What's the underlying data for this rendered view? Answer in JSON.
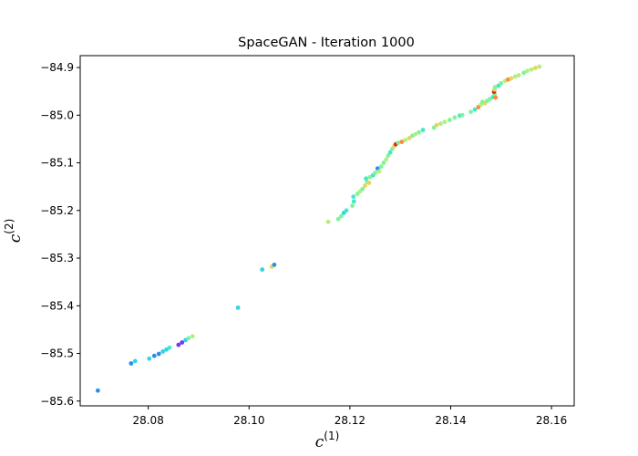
{
  "chart_data": {
    "type": "scatter",
    "title": "SpaceGAN - Iteration 1000",
    "xlabel": {
      "base": "c",
      "sup": "(1)"
    },
    "ylabel": {
      "base": "c",
      "sup": "(2)"
    },
    "xlim": [
      28.0665,
      28.1645
    ],
    "ylim": [
      -85.61,
      -84.875
    ],
    "xticks": [
      28.08,
      28.1,
      28.12,
      28.14,
      28.16
    ],
    "xtick_labels": [
      "28.08",
      "28.10",
      "28.12",
      "28.14",
      "28.16"
    ],
    "yticks": [
      -84.9,
      -85.0,
      -85.1,
      -85.2,
      -85.3,
      -85.4,
      -85.5,
      -85.6
    ],
    "ytick_labels": [
      "−84.9",
      "−85.0",
      "−85.1",
      "−85.2",
      "−85.3",
      "−85.4",
      "−85.5",
      "−85.6"
    ],
    "grid": false,
    "legend": "none",
    "colors": {
      "purple": "#6a3cf5",
      "blue": "#2c8fe6",
      "cyan": "#33d3e8",
      "aqua": "#45e8c5",
      "green": "#7ef59a",
      "lime": "#b3ef7f",
      "yellow": "#e9d45e",
      "orange": "#f78a3e",
      "red": "#e4261b"
    },
    "points": [
      {
        "x": 28.07,
        "y": -85.578,
        "c": "blue"
      },
      {
        "x": 28.0766,
        "y": -85.521,
        "c": "blue"
      },
      {
        "x": 28.0774,
        "y": -85.516,
        "c": "cyan"
      },
      {
        "x": 28.0802,
        "y": -85.511,
        "c": "cyan"
      },
      {
        "x": 28.0812,
        "y": -85.505,
        "c": "blue"
      },
      {
        "x": 28.0821,
        "y": -85.501,
        "c": "blue"
      },
      {
        "x": 28.0829,
        "y": -85.496,
        "c": "cyan"
      },
      {
        "x": 28.0836,
        "y": -85.492,
        "c": "cyan"
      },
      {
        "x": 28.0842,
        "y": -85.488,
        "c": "aqua"
      },
      {
        "x": 28.086,
        "y": -85.482,
        "c": "purple"
      },
      {
        "x": 28.0867,
        "y": -85.477,
        "c": "purple"
      },
      {
        "x": 28.0874,
        "y": -85.472,
        "c": "cyan"
      },
      {
        "x": 28.088,
        "y": -85.468,
        "c": "green"
      },
      {
        "x": 28.0888,
        "y": -85.464,
        "c": "lime"
      },
      {
        "x": 28.0978,
        "y": -85.404,
        "c": "cyan"
      },
      {
        "x": 28.1026,
        "y": -85.324,
        "c": "cyan"
      },
      {
        "x": 28.1045,
        "y": -85.318,
        "c": "yellow"
      },
      {
        "x": 28.105,
        "y": -85.314,
        "c": "blue"
      },
      {
        "x": 28.1157,
        "y": -85.224,
        "c": "lime"
      },
      {
        "x": 28.1177,
        "y": -85.218,
        "c": "green"
      },
      {
        "x": 28.1183,
        "y": -85.212,
        "c": "green"
      },
      {
        "x": 28.1188,
        "y": -85.205,
        "c": "cyan"
      },
      {
        "x": 28.1193,
        "y": -85.2,
        "c": "aqua"
      },
      {
        "x": 28.1205,
        "y": -85.19,
        "c": "green"
      },
      {
        "x": 28.1208,
        "y": -85.181,
        "c": "aqua"
      },
      {
        "x": 28.1207,
        "y": -85.171,
        "c": "aqua"
      },
      {
        "x": 28.1215,
        "y": -85.165,
        "c": "green"
      },
      {
        "x": 28.122,
        "y": -85.16,
        "c": "lime"
      },
      {
        "x": 28.1225,
        "y": -85.155,
        "c": "green"
      },
      {
        "x": 28.123,
        "y": -85.148,
        "c": "yellow"
      },
      {
        "x": 28.1234,
        "y": -85.14,
        "c": "green"
      },
      {
        "x": 28.1232,
        "y": -85.133,
        "c": "aqua"
      },
      {
        "x": 28.1238,
        "y": -85.142,
        "c": "yellow"
      },
      {
        "x": 28.124,
        "y": -85.13,
        "c": "green"
      },
      {
        "x": 28.1246,
        "y": -85.126,
        "c": "aqua"
      },
      {
        "x": 28.125,
        "y": -85.121,
        "c": "green"
      },
      {
        "x": 28.1255,
        "y": -85.112,
        "c": "blue"
      },
      {
        "x": 28.1258,
        "y": -85.118,
        "c": "lime"
      },
      {
        "x": 28.1262,
        "y": -85.108,
        "c": "green"
      },
      {
        "x": 28.1267,
        "y": -85.1,
        "c": "green"
      },
      {
        "x": 28.1272,
        "y": -85.093,
        "c": "lime"
      },
      {
        "x": 28.1276,
        "y": -85.085,
        "c": "green"
      },
      {
        "x": 28.128,
        "y": -85.078,
        "c": "aqua"
      },
      {
        "x": 28.1284,
        "y": -85.071,
        "c": "green"
      },
      {
        "x": 28.1288,
        "y": -85.065,
        "c": "yellow"
      },
      {
        "x": 28.1291,
        "y": -85.061,
        "c": "red"
      },
      {
        "x": 28.1296,
        "y": -85.058,
        "c": "green"
      },
      {
        "x": 28.1303,
        "y": -85.056,
        "c": "orange"
      },
      {
        "x": 28.131,
        "y": -85.052,
        "c": "lime"
      },
      {
        "x": 28.1318,
        "y": -85.048,
        "c": "yellow"
      },
      {
        "x": 28.1324,
        "y": -85.043,
        "c": "green"
      },
      {
        "x": 28.133,
        "y": -85.04,
        "c": "lime"
      },
      {
        "x": 28.1337,
        "y": -85.036,
        "c": "green"
      },
      {
        "x": 28.1345,
        "y": -85.031,
        "c": "aqua"
      },
      {
        "x": 28.1367,
        "y": -85.026,
        "c": "green"
      },
      {
        "x": 28.1372,
        "y": -85.021,
        "c": "yellow"
      },
      {
        "x": 28.138,
        "y": -85.018,
        "c": "lime"
      },
      {
        "x": 28.1388,
        "y": -85.014,
        "c": "lime"
      },
      {
        "x": 28.1398,
        "y": -85.01,
        "c": "green"
      },
      {
        "x": 28.1408,
        "y": -85.005,
        "c": "green"
      },
      {
        "x": 28.1418,
        "y": -85.001,
        "c": "aqua"
      },
      {
        "x": 28.1423,
        "y": -85.0,
        "c": "green"
      },
      {
        "x": 28.144,
        "y": -84.993,
        "c": "green"
      },
      {
        "x": 28.1448,
        "y": -84.988,
        "c": "aqua"
      },
      {
        "x": 28.1455,
        "y": -84.983,
        "c": "orange"
      },
      {
        "x": 28.146,
        "y": -84.978,
        "c": "lime"
      },
      {
        "x": 28.1463,
        "y": -84.972,
        "c": "green"
      },
      {
        "x": 28.1468,
        "y": -84.975,
        "c": "yellow"
      },
      {
        "x": 28.1472,
        "y": -84.97,
        "c": "green"
      },
      {
        "x": 28.1478,
        "y": -84.966,
        "c": "green"
      },
      {
        "x": 28.1484,
        "y": -84.962,
        "c": "aqua"
      },
      {
        "x": 28.1487,
        "y": -84.956,
        "c": "green"
      },
      {
        "x": 28.1486,
        "y": -84.951,
        "c": "red"
      },
      {
        "x": 28.1487,
        "y": -84.946,
        "c": "yellow"
      },
      {
        "x": 28.1488,
        "y": -84.941,
        "c": "green"
      },
      {
        "x": 28.1489,
        "y": -84.963,
        "c": "orange"
      },
      {
        "x": 28.1495,
        "y": -84.938,
        "c": "aqua"
      },
      {
        "x": 28.15,
        "y": -84.933,
        "c": "green"
      },
      {
        "x": 28.1508,
        "y": -84.928,
        "c": "lime"
      },
      {
        "x": 28.1514,
        "y": -84.925,
        "c": "orange"
      },
      {
        "x": 28.152,
        "y": -84.923,
        "c": "yellow"
      },
      {
        "x": 28.1528,
        "y": -84.919,
        "c": "lime"
      },
      {
        "x": 28.1535,
        "y": -84.916,
        "c": "lime"
      },
      {
        "x": 28.1545,
        "y": -84.911,
        "c": "green"
      },
      {
        "x": 28.1552,
        "y": -84.907,
        "c": "lime"
      },
      {
        "x": 28.156,
        "y": -84.904,
        "c": "lime"
      },
      {
        "x": 28.1568,
        "y": -84.901,
        "c": "yellow"
      },
      {
        "x": 28.1576,
        "y": -84.898,
        "c": "lime"
      }
    ]
  }
}
